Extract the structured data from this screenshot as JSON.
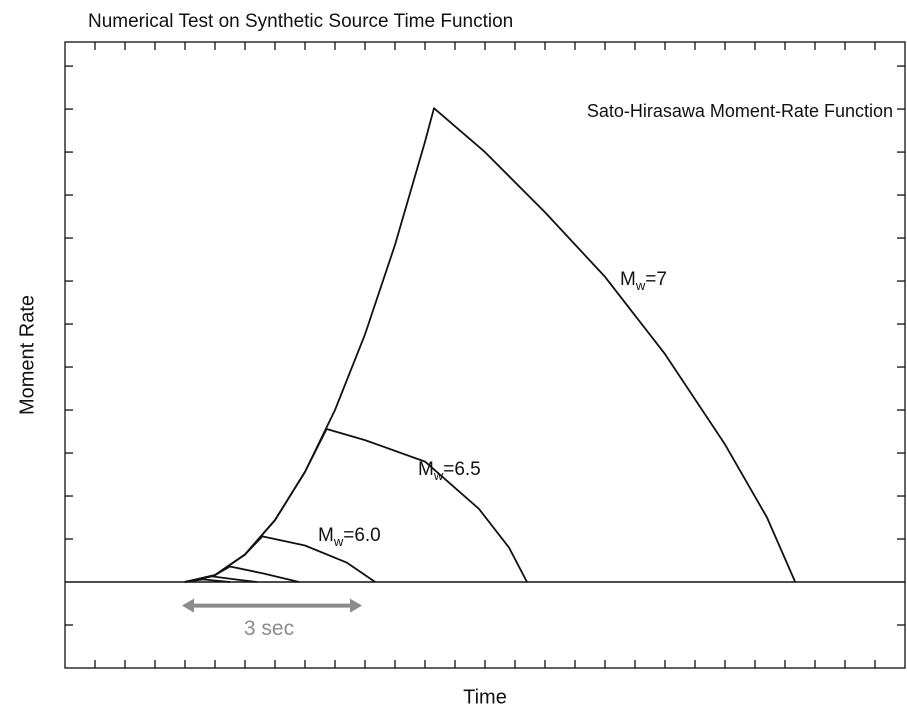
{
  "chart_data": {
    "type": "line",
    "title": "Numerical Test on Synthetic Source Time Function",
    "x_label": "Time",
    "y_label": "Moment Rate",
    "annotation": "Sato-Hirasawa Moment-Rate Function",
    "xlim": [
      0,
      14
    ],
    "ylim": [
      -2,
      12.56
    ],
    "xticks": [
      0.5,
      1,
      1.5,
      2,
      2.5,
      3,
      3.5,
      4,
      4.5,
      5,
      5.5,
      6,
      6.5,
      7,
      7.5,
      8,
      8.5,
      9,
      9.5,
      10,
      10.5,
      11,
      11.5,
      12,
      12.5,
      13,
      13.5
    ],
    "yticks": [
      -1,
      1,
      2,
      3,
      4,
      5,
      6,
      7,
      8,
      9,
      10,
      11,
      12
    ],
    "baseline": 0,
    "color": "#111111",
    "series": [
      {
        "label": {
          "main": "M",
          "sub": "w",
          "rest": "=7"
        },
        "x": [
          2.0,
          2.5,
          3,
          3.5,
          4,
          4.5,
          5,
          5.5,
          6,
          6.15,
          7,
          8,
          9,
          10,
          11,
          11.7,
          12.17
        ],
        "values": [
          0,
          0.16,
          0.64,
          1.44,
          2.56,
          4.0,
          5.76,
          7.84,
          10.24,
          11.02,
          10.0,
          8.6,
          7.1,
          5.3,
          3.2,
          1.5,
          0
        ]
      },
      {
        "label": {
          "main": "M",
          "sub": "w",
          "rest": "=6.5"
        },
        "x": [
          2.0,
          2.5,
          3,
          3.5,
          4,
          4.36,
          5,
          6,
          6.9,
          7.4,
          7.7
        ],
        "values": [
          0,
          0.16,
          0.64,
          1.44,
          2.56,
          3.56,
          3.3,
          2.8,
          1.7,
          0.8,
          0
        ]
      },
      {
        "label": {
          "main": "M",
          "sub": "w",
          "rest": "=6.0"
        },
        "x": [
          2.0,
          2.5,
          3,
          3.29,
          4,
          4.7,
          5.17
        ],
        "values": [
          0,
          0.16,
          0.64,
          1.06,
          0.85,
          0.45,
          0
        ]
      },
      {
        "x": [
          2.0,
          2.5,
          2.75,
          3.3,
          3.9
        ],
        "values": [
          0,
          0.16,
          0.36,
          0.2,
          0
        ]
      },
      {
        "x": [
          2.0,
          2.45,
          2.9,
          3.2
        ],
        "values": [
          0,
          0.13,
          0.05,
          0
        ]
      },
      {
        "x": [
          2.0,
          2.3,
          2.75
        ],
        "values": [
          0,
          0.06,
          0
        ]
      }
    ],
    "arrow": {
      "x": [
        1.95,
        4.95
      ],
      "y": -0.55,
      "label": "3 sec",
      "color": "#8c8c8c"
    }
  }
}
